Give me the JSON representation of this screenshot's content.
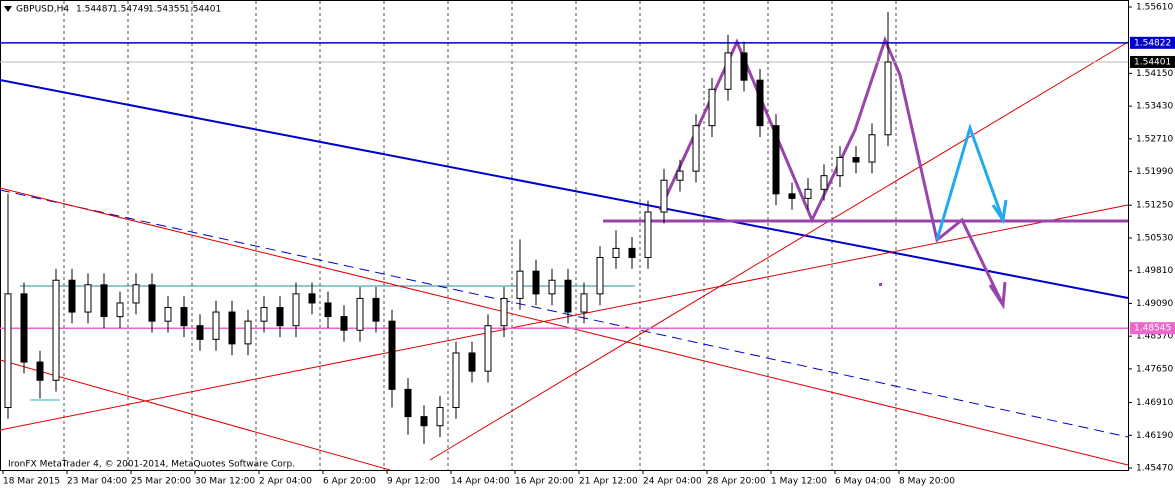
{
  "chart_data": {
    "type": "candlestick",
    "title": "GBPUSD,H4",
    "header_values": [
      1.54487,
      1.54749,
      1.54355,
      1.54401
    ],
    "footer": "IronFX MetaTrader 4, © 2001-2014, MetaQuotes Software Corp.",
    "ylim": [
      1.4547,
      1.5561
    ],
    "yticks": [
      {
        "value": 1.5561,
        "label": "1.55610"
      },
      {
        "value": 1.5415,
        "label": "1.54150"
      },
      {
        "value": 1.5343,
        "label": "1.53430"
      },
      {
        "value": 1.5271,
        "label": "1.52710"
      },
      {
        "value": 1.5199,
        "label": "1.51990"
      },
      {
        "value": 1.5125,
        "label": "1.51250"
      },
      {
        "value": 1.5053,
        "label": "1.50530"
      },
      {
        "value": 1.4981,
        "label": "1.49810"
      },
      {
        "value": 1.4909,
        "label": "1.49090"
      },
      {
        "value": 1.4837,
        "label": "1.48370"
      },
      {
        "value": 1.4765,
        "label": "1.47650"
      },
      {
        "value": 1.4691,
        "label": "1.46910"
      },
      {
        "value": 1.4619,
        "label": "1.46190"
      },
      {
        "value": 1.4547,
        "label": "1.45470"
      }
    ],
    "levels": [
      {
        "value": 1.54822,
        "color": "#0000cc"
      },
      {
        "value": 1.54401,
        "color": "#000000"
      },
      {
        "value": 1.48545,
        "color": "#ee66cc"
      }
    ],
    "time_labels": [
      "18 Mar 2015",
      "23 Mar 04:00",
      "25 Mar 20:00",
      "30 Mar 12:00",
      "2 Apr 04:00",
      "6 Apr 20:00",
      "9 Apr 12:00",
      "14 Apr 04:00",
      "16 Apr 20:00",
      "21 Apr 12:00",
      "24 Apr 04:00",
      "28 Apr 20:00",
      "1 May 12:00",
      "6 May 04:00",
      "8 May 20:00"
    ],
    "open": [
      1.468,
      1.493,
      1.478,
      1.474,
      1.496,
      1.489,
      1.495,
      1.488,
      1.491,
      1.495,
      1.487,
      1.49,
      1.486,
      1.483,
      1.489,
      1.482,
      1.487,
      1.49,
      1.486,
      1.493,
      1.491,
      1.488,
      1.485,
      1.492,
      1.487,
      1.472,
      1.466,
      1.464,
      1.468,
      1.48,
      1.476,
      1.486,
      1.492,
      1.498,
      1.493,
      1.496,
      1.489,
      1.493,
      1.501,
      1.503,
      1.501,
      1.511,
      1.518,
      1.52,
      1.53,
      1.538,
      1.546,
      1.54,
      1.53,
      1.515,
      1.514,
      1.516,
      1.519,
      1.523,
      1.522,
      1.528
    ],
    "high": [
      1.515,
      1.4955,
      1.4805,
      1.4985,
      1.4985,
      1.4975,
      1.4975,
      1.4935,
      1.4975,
      1.4975,
      1.4925,
      1.4925,
      1.4885,
      1.4915,
      1.4915,
      1.4895,
      1.4925,
      1.4925,
      1.4955,
      1.4955,
      1.4935,
      1.4905,
      1.4945,
      1.4945,
      1.4895,
      1.4745,
      1.4685,
      1.4705,
      1.4825,
      1.4825,
      1.4885,
      1.4945,
      1.505,
      1.5005,
      1.4985,
      1.4985,
      1.4955,
      1.5035,
      1.507,
      1.5055,
      1.5135,
      1.5205,
      1.5225,
      1.5325,
      1.5405,
      1.55,
      1.5485,
      1.5425,
      1.5325,
      1.5175,
      1.5185,
      1.5215,
      1.5255,
      1.5255,
      1.5305,
      1.555
    ],
    "low": [
      1.4655,
      1.4755,
      1.47,
      1.4715,
      1.4865,
      1.4865,
      1.4855,
      1.4855,
      1.4885,
      1.4845,
      1.4845,
      1.4835,
      1.4805,
      1.4805,
      1.4795,
      1.4795,
      1.4845,
      1.4835,
      1.4835,
      1.4885,
      1.4855,
      1.4825,
      1.4825,
      1.4845,
      1.468,
      1.462,
      1.46,
      1.4615,
      1.4655,
      1.4735,
      1.4735,
      1.4835,
      1.4895,
      1.4905,
      1.4905,
      1.4865,
      1.4865,
      1.4905,
      1.4985,
      1.4985,
      1.4985,
      1.5085,
      1.5155,
      1.5175,
      1.5275,
      1.5355,
      1.5375,
      1.5275,
      1.5125,
      1.5115,
      1.5115,
      1.5135,
      1.5165,
      1.5195,
      1.5195,
      1.5255
    ],
    "close": [
      1.493,
      1.478,
      1.474,
      1.496,
      1.489,
      1.495,
      1.488,
      1.491,
      1.495,
      1.487,
      1.49,
      1.486,
      1.483,
      1.489,
      1.482,
      1.487,
      1.49,
      1.486,
      1.493,
      1.491,
      1.488,
      1.485,
      1.492,
      1.487,
      1.472,
      1.466,
      1.464,
      1.468,
      1.48,
      1.476,
      1.486,
      1.492,
      1.498,
      1.493,
      1.496,
      1.489,
      1.493,
      1.501,
      1.503,
      1.501,
      1.511,
      1.518,
      1.52,
      1.53,
      1.538,
      1.546,
      1.54,
      1.53,
      1.515,
      1.514,
      1.516,
      1.519,
      1.523,
      1.522,
      1.528,
      1.544
    ]
  }
}
